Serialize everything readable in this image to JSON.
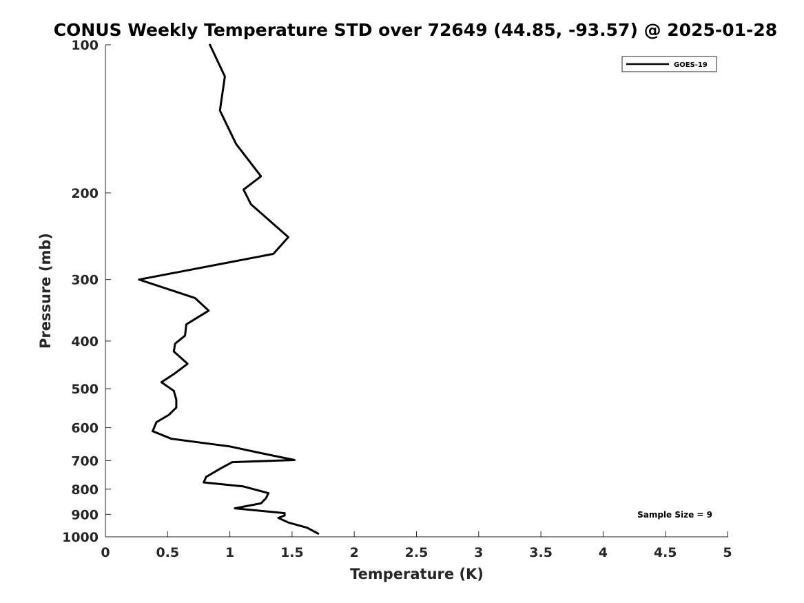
{
  "chart_data": {
    "type": "line",
    "title": "CONUS Weekly Temperature STD over 72649 (44.85, -93.57) @ 2025-01-28",
    "xlabel": "Temperature (K)",
    "ylabel": "Pressure (mb)",
    "xlim": [
      0,
      5
    ],
    "ylim": [
      100,
      1000
    ],
    "yscale": "log",
    "y_reversed": true,
    "grid": false,
    "legend_position": "top-right",
    "x_ticks": [
      "0",
      "0.5",
      "1",
      "1.5",
      "2",
      "2.5",
      "3",
      "3.5",
      "4",
      "4.5",
      "5"
    ],
    "y_ticks": [
      "100",
      "200",
      "300",
      "400",
      "500",
      "600",
      "700",
      "800",
      "900",
      "1000"
    ],
    "series": [
      {
        "name": "GOES-19",
        "color": "#000000",
        "x": [
          0.84,
          0.96,
          0.92,
          1.05,
          1.25,
          1.11,
          1.17,
          1.47,
          1.35,
          0.27,
          0.72,
          0.83,
          0.65,
          0.64,
          0.56,
          0.55,
          0.66,
          0.56,
          0.45,
          0.55,
          0.57,
          0.57,
          0.51,
          0.41,
          0.38,
          0.53,
          1.0,
          1.3,
          1.52,
          1.02,
          0.93,
          0.81,
          0.79,
          1.11,
          1.31,
          1.29,
          1.25,
          1.04,
          1.44,
          1.44,
          1.39,
          1.47,
          1.62,
          1.71
        ],
        "y": [
          100,
          116,
          136,
          159,
          185,
          197,
          211,
          246,
          266,
          300,
          327,
          347,
          370,
          390,
          405,
          420,
          445,
          465,
          485,
          505,
          526,
          546,
          565,
          585,
          610,
          632,
          655,
          680,
          698,
          705,
          725,
          755,
          775,
          790,
          815,
          835,
          855,
          875,
          895,
          905,
          915,
          935,
          958,
          985
        ]
      }
    ],
    "annotations": [
      "Sample Size = 9"
    ]
  }
}
